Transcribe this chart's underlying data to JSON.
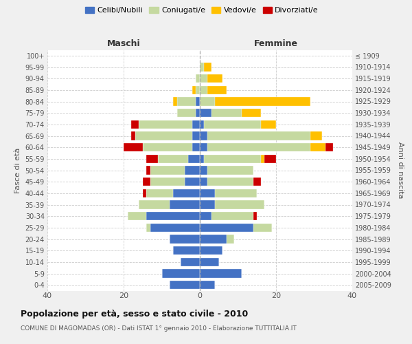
{
  "age_groups": [
    "0-4",
    "5-9",
    "10-14",
    "15-19",
    "20-24",
    "25-29",
    "30-34",
    "35-39",
    "40-44",
    "45-49",
    "50-54",
    "55-59",
    "60-64",
    "65-69",
    "70-74",
    "75-79",
    "80-84",
    "85-89",
    "90-94",
    "95-99",
    "100+"
  ],
  "birth_years": [
    "2005-2009",
    "2000-2004",
    "1995-1999",
    "1990-1994",
    "1985-1989",
    "1980-1984",
    "1975-1979",
    "1970-1974",
    "1965-1969",
    "1960-1964",
    "1955-1959",
    "1950-1954",
    "1945-1949",
    "1940-1944",
    "1935-1939",
    "1930-1934",
    "1925-1929",
    "1920-1924",
    "1915-1919",
    "1910-1914",
    "≤ 1909"
  ],
  "colors": {
    "celibe": "#4472c4",
    "coniugato": "#c5d9a0",
    "vedovo": "#ffc000",
    "divorziato": "#cc0000"
  },
  "males": {
    "celibe": [
      8,
      10,
      5,
      7,
      8,
      13,
      14,
      8,
      7,
      4,
      4,
      3,
      2,
      2,
      2,
      1,
      1,
      0,
      0,
      0,
      0
    ],
    "coniugato": [
      0,
      0,
      0,
      0,
      0,
      1,
      5,
      8,
      7,
      9,
      9,
      8,
      13,
      15,
      14,
      5,
      5,
      1,
      1,
      0,
      0
    ],
    "vedovo": [
      0,
      0,
      0,
      0,
      0,
      0,
      0,
      0,
      0,
      0,
      0,
      0,
      0,
      0,
      0,
      0,
      1,
      1,
      0,
      0,
      0
    ],
    "divorziato": [
      0,
      0,
      0,
      0,
      0,
      0,
      0,
      0,
      1,
      2,
      1,
      3,
      5,
      1,
      2,
      0,
      0,
      0,
      0,
      0,
      0
    ]
  },
  "females": {
    "celibe": [
      4,
      11,
      5,
      6,
      7,
      14,
      3,
      4,
      4,
      2,
      2,
      1,
      2,
      2,
      1,
      3,
      0,
      0,
      0,
      0,
      0
    ],
    "coniugato": [
      0,
      0,
      0,
      0,
      2,
      5,
      11,
      13,
      11,
      12,
      12,
      15,
      27,
      27,
      15,
      8,
      4,
      2,
      2,
      1,
      0
    ],
    "vedovo": [
      0,
      0,
      0,
      0,
      0,
      0,
      0,
      0,
      0,
      0,
      0,
      1,
      4,
      3,
      4,
      5,
      25,
      5,
      4,
      2,
      0
    ],
    "divorziato": [
      0,
      0,
      0,
      0,
      0,
      0,
      1,
      0,
      0,
      2,
      0,
      3,
      2,
      0,
      0,
      0,
      0,
      0,
      0,
      0,
      0
    ]
  },
  "xlim": 40,
  "title": "Popolazione per età, sesso e stato civile - 2010",
  "subtitle": "COMUNE DI MAGOMADAS (OR) - Dati ISTAT 1° gennaio 2010 - Elaborazione TUTTITALIA.IT",
  "xlabel_left": "Maschi",
  "xlabel_right": "Femmine",
  "ylabel_left": "Fasce di età",
  "ylabel_right": "Anni di nascita",
  "legend_labels": [
    "Celibi/Nubili",
    "Coniugati/e",
    "Vedovi/e",
    "Divorziati/e"
  ],
  "bg_color": "#f0f0f0",
  "plot_bg": "#ffffff",
  "grid_color": "#cccccc"
}
